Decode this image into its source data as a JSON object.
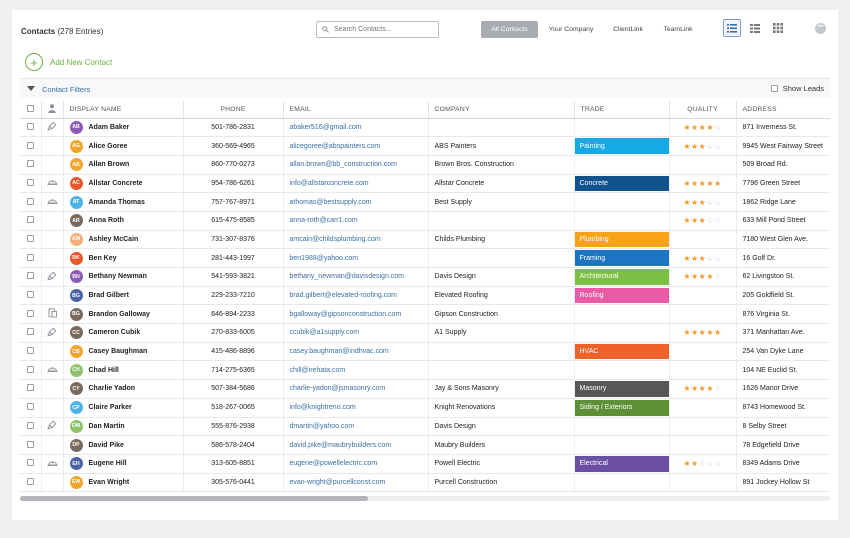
{
  "header": {
    "title": "Contacts",
    "count": "(278 Entries)",
    "search_placeholder": "Search Contacts...",
    "segments": [
      "All Contacts",
      "Your Company",
      "ClientLink",
      "TeamLink"
    ]
  },
  "add_contact_label": "Add New Contact",
  "filters": {
    "label": "Contact Filters",
    "show_leads_label": "Show Leads"
  },
  "columns": {
    "display_name": "DISPLAY NAME",
    "phone": "PHONE",
    "email": "EMAIL",
    "company": "COMPANY",
    "trade": "TRADE",
    "quality": "QUALITY",
    "address": "ADDRESS"
  },
  "colors": {
    "accent_green": "#6eb33f",
    "link_blue": "#3d6fa3",
    "star": "#f09a2a",
    "active_segment": "#a8acb2"
  },
  "rows": [
    {
      "icon": "brush",
      "initials": "AB",
      "avatar_color": "#8e5bb7",
      "name": "Adam Baker",
      "phone": "501-786-2831",
      "email": "abaker516@gmail.com",
      "company": "",
      "trade": "",
      "trade_color": "",
      "quality": 4,
      "address": "871 Inverness St."
    },
    {
      "icon": "",
      "initials": "AG",
      "avatar_color": "#f0a62c",
      "name": "Alice Goree",
      "phone": "360-569-4965",
      "email": "alicegoree@abspainters.com",
      "company": "ABS Painters",
      "trade": "Painting",
      "trade_color": "#16a9e5",
      "quality": 3,
      "address": "9945 West Fairway Street"
    },
    {
      "icon": "",
      "initials": "AB",
      "avatar_color": "#f0a62c",
      "name": "Allan Brown",
      "phone": "860-770-0273",
      "email": "allan.brown@bb_construction.com",
      "company": "Brown Bros. Construction",
      "trade": "",
      "trade_color": "",
      "quality": 0,
      "address": "509 Broad Rd."
    },
    {
      "icon": "hardhat",
      "initials": "AC",
      "avatar_color": "#e8572a",
      "name": "Allstar Concrete",
      "phone": "954-786-6261",
      "email": "info@allstarconcrete.com",
      "company": "Allstar Concrete",
      "trade": "Concrete",
      "trade_color": "#10528c",
      "quality": 5,
      "address": "7796 Green Street"
    },
    {
      "icon": "hardhat",
      "initials": "AT",
      "avatar_color": "#4fb3e8",
      "name": "Amanda Thomas",
      "phone": "757-767-8971",
      "email": "athomas@bestsupply.com",
      "company": "Best Supply",
      "trade": "",
      "trade_color": "",
      "quality": 3,
      "address": "1862 Ridge Lane"
    },
    {
      "icon": "",
      "initials": "AR",
      "avatar_color": "photo",
      "name": "Anna Roth",
      "phone": "615-475-8585",
      "email": "anna-roth@carr1.com",
      "company": "",
      "trade": "",
      "trade_color": "",
      "quality": 3,
      "address": "633 Mill Pond Street"
    },
    {
      "icon": "",
      "initials": "AM",
      "avatar_color": "#f4b07a",
      "name": "Ashley McCain",
      "phone": "731-307-8376",
      "email": "amcain@childsplumbing.com",
      "company": "Childs Plumbing",
      "trade": "Plumbing",
      "trade_color": "#f8a218",
      "quality": 0,
      "address": "7180 West Glen Ave."
    },
    {
      "icon": "",
      "initials": "BK",
      "avatar_color": "#e8572a",
      "name": "Ben Key",
      "phone": "281-443-1997",
      "email": "ben1988@yahoo.com",
      "company": "",
      "trade": "Framing",
      "trade_color": "#1b74c6",
      "quality": 3,
      "address": "16 Golf Dr."
    },
    {
      "icon": "brush",
      "initials": "BN",
      "avatar_color": "#8e5bb7",
      "name": "Bethany Newman",
      "phone": "541-593-3821",
      "email": "bethany_newman@davisdesign.com",
      "company": "Davis Design",
      "trade": "Architectural",
      "trade_color": "#7cc043",
      "quality": 4,
      "address": "62 Livingston St."
    },
    {
      "icon": "",
      "initials": "BG",
      "avatar_color": "#4b64a8",
      "name": "Brad Gilbert",
      "phone": "229-233-7210",
      "email": "brad.gilbert@elevated-roofing.com",
      "company": "Elevated Roofing",
      "trade": "Roofing",
      "trade_color": "#ea5aa6",
      "quality": 0,
      "address": "205 Goldfield St."
    },
    {
      "icon": "doc",
      "initials": "BG",
      "avatar_color": "photo",
      "name": "Brandon Galloway",
      "phone": "646-894-2233",
      "email": "bgalloway@gipsonconstruction.com",
      "company": "Gipson Construction",
      "trade": "",
      "trade_color": "",
      "quality": 0,
      "address": "876 Virginia St."
    },
    {
      "icon": "brush",
      "initials": "CC",
      "avatar_color": "photo",
      "name": "Cameron Cubik",
      "phone": "270-833-6005",
      "email": "ccubik@a1supply.com",
      "company": "A1 Supply",
      "trade": "",
      "trade_color": "",
      "quality": 5,
      "address": "371 Manhattan Ave."
    },
    {
      "icon": "",
      "initials": "CB",
      "avatar_color": "#f0a62c",
      "name": "Casey Baughman",
      "phone": "415-486-8896",
      "email": "casey.baughman@indhvac.com",
      "company": "",
      "trade": "HVAC",
      "trade_color": "#ee6128",
      "quality": 0,
      "address": "254 Van Dyke Lane"
    },
    {
      "icon": "hardhat",
      "initials": "CH",
      "avatar_color": "#8fc46b",
      "name": "Chad Hill",
      "phone": "714-275-6365",
      "email": "chill@irehata.com",
      "company": "",
      "trade": "",
      "trade_color": "",
      "quality": 0,
      "address": "104 NE Euclid St."
    },
    {
      "icon": "",
      "initials": "CY",
      "avatar_color": "photo",
      "name": "Charlie Yadon",
      "phone": "507-384-5686",
      "email": "charlie-yadon@jsmasonry.com",
      "company": "Jay & Sons Masonry",
      "trade": "Masonry",
      "trade_color": "#555759",
      "quality": 4,
      "address": "1626 Manor Drive"
    },
    {
      "icon": "",
      "initials": "CP",
      "avatar_color": "#4fb3e8",
      "name": "Claire Parker",
      "phone": "518-267-0065",
      "email": "info@knightreno.com",
      "company": "Knight Renovations",
      "trade": "Siding / Exteriors",
      "trade_color": "#5d8f36",
      "quality": 0,
      "address": "8743 Homewood St."
    },
    {
      "icon": "brush",
      "initials": "DM",
      "avatar_color": "#8fc46b",
      "name": "Dan Martin",
      "phone": "555-876-2938",
      "email": "dmartin@yahoo.com",
      "company": "Davis Design",
      "trade": "",
      "trade_color": "",
      "quality": 0,
      "address": "8 Selby Street"
    },
    {
      "icon": "",
      "initials": "DP",
      "avatar_color": "photo",
      "name": "David Pike",
      "phone": "586-578-2404",
      "email": "david.pike@maubrybuilders.com",
      "company": "Maubry Builders",
      "trade": "",
      "trade_color": "",
      "quality": 0,
      "address": "78 Edgefield Drive"
    },
    {
      "icon": "hardhat",
      "initials": "EH",
      "avatar_color": "#4b64a8",
      "name": "Eugene Hill",
      "phone": "313-605-8851",
      "email": "eugene@powellelectric.com",
      "company": "Powell Electric",
      "trade": "Electrical",
      "trade_color": "#6a4fa5",
      "quality": 2,
      "address": "8349 Adams Drive"
    },
    {
      "icon": "",
      "initials": "EW",
      "avatar_color": "#f0a62c",
      "name": "Evan Wright",
      "phone": "305-576-0441",
      "email": "evan-wright@purcellconst.com",
      "company": "Purcell Construction",
      "trade": "",
      "trade_color": "",
      "quality": 0,
      "address": "891 Jockey Hollow St"
    }
  ]
}
